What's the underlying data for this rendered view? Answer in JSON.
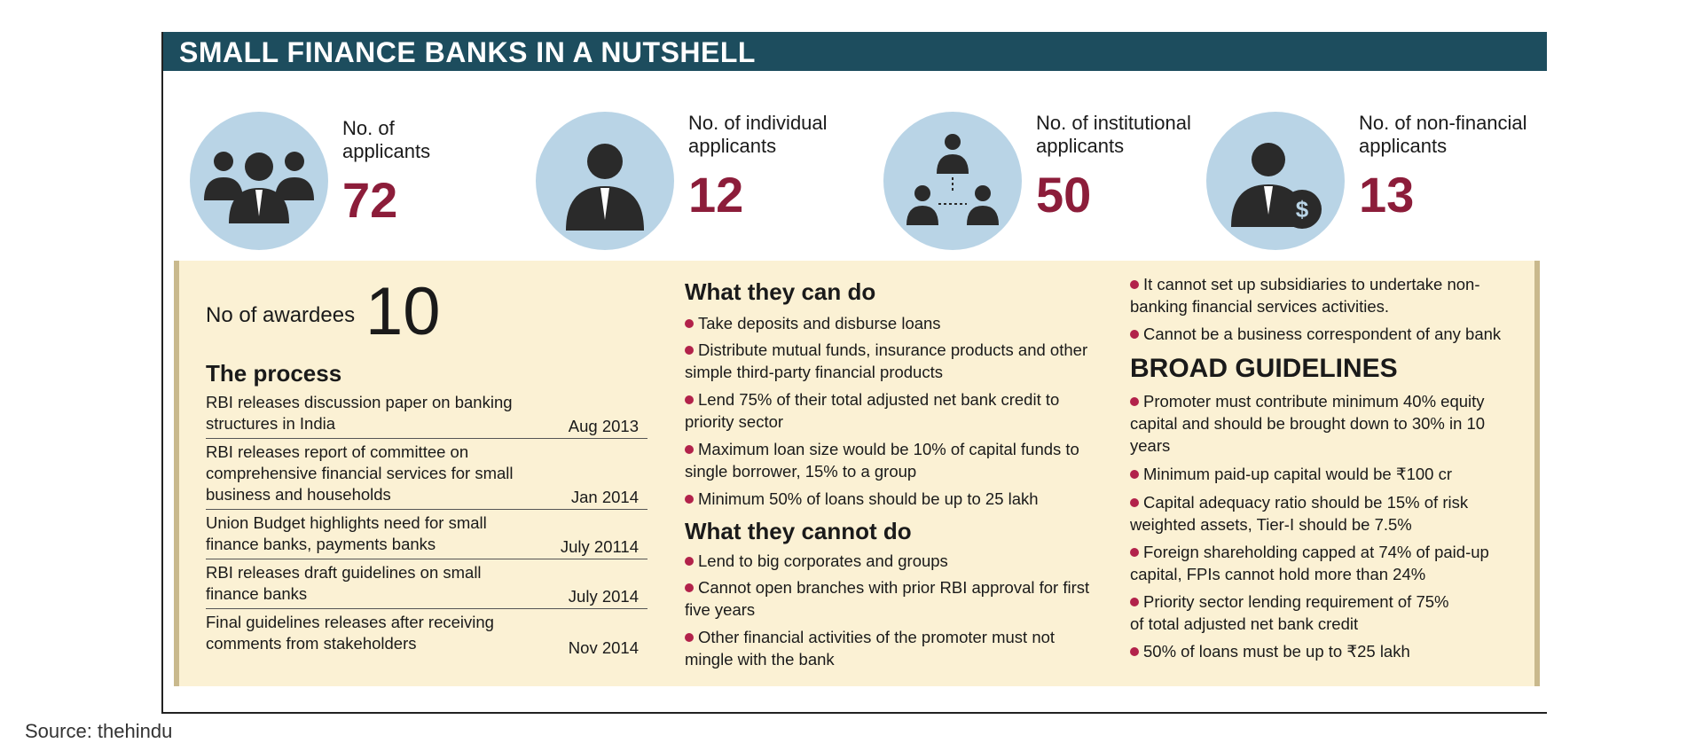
{
  "title": "SMALL FINANCE BANKS IN A NUTSHELL",
  "stats": [
    {
      "label_line1": "No. of",
      "label_line2": "applicants",
      "value": "72",
      "icon": "group-people-icon"
    },
    {
      "label_line1": "No. of individual",
      "label_line2": "applicants",
      "value": "12",
      "icon": "person-icon"
    },
    {
      "label_line1": "No. of institutional",
      "label_line2": "applicants",
      "value": "50",
      "icon": "network-people-icon"
    },
    {
      "label_line1": "No. of non-financial",
      "label_line2": "applicants",
      "value": "13",
      "icon": "person-money-icon"
    }
  ],
  "awardees": {
    "label": "No of awardees",
    "value": "10"
  },
  "process": {
    "title": "The process",
    "rows": [
      {
        "event": "RBI releases discussion paper on banking structures in India",
        "date": "Aug 2013"
      },
      {
        "event": "RBI releases report of committee on comprehensive financial services for small business and households",
        "date": "Jan 2014"
      },
      {
        "event": "Union Budget highlights need for small finance banks, payments banks",
        "date": "July 20114"
      },
      {
        "event": "RBI releases draft guidelines on small finance banks",
        "date": "July 2014"
      },
      {
        "event": "Final guidelines releases after receiving comments from stakeholders",
        "date": "Nov 2014"
      }
    ]
  },
  "can_do": {
    "title": "What they can do",
    "items": [
      "Take deposits and disburse loans",
      "Distribute mutual funds, insurance products and other simple third-party financial products",
      "Lend 75% of their total adjusted net bank credit to priority sector",
      "Maximum loan size would be 10% of capital funds to single borrower, 15% to a group",
      "Minimum 50% of loans should be up to 25 lakh"
    ]
  },
  "cannot_do": {
    "title": "What they cannot do",
    "items": [
      "Lend to big corporates and groups",
      "Cannot open branches with prior RBI approval for first five years",
      "Other financial activities of the promoter must not mingle with the bank",
      "It cannot set up subsidiaries to undertake non-banking financial services activities.",
      "Cannot be a business correspondent of any bank"
    ]
  },
  "guidelines": {
    "title": "BROAD GUIDELINES",
    "items": [
      "Promoter must contribute minimum 40% equity capital and should be brought down to 30% in 10 years",
      "Minimum paid-up capital would be ₹100 cr",
      "Capital adequacy ratio should be 15% of risk weighted assets, Tier-I should be 7.5%",
      "Foreign shareholding capped at 74% of paid-up capital, FPIs cannot hold more than 24%",
      "Priority sector lending requirement of 75% of total adjusted net bank credit",
      "50% of loans must be up to ₹25 lakh"
    ]
  },
  "source": "Source: thehindu",
  "colors": {
    "title_bar": "#1d4d5e",
    "number": "#8c1d3a",
    "panel": "#fbf1d4",
    "circle": "#b9d4e6",
    "bullet": "#b2224a"
  }
}
